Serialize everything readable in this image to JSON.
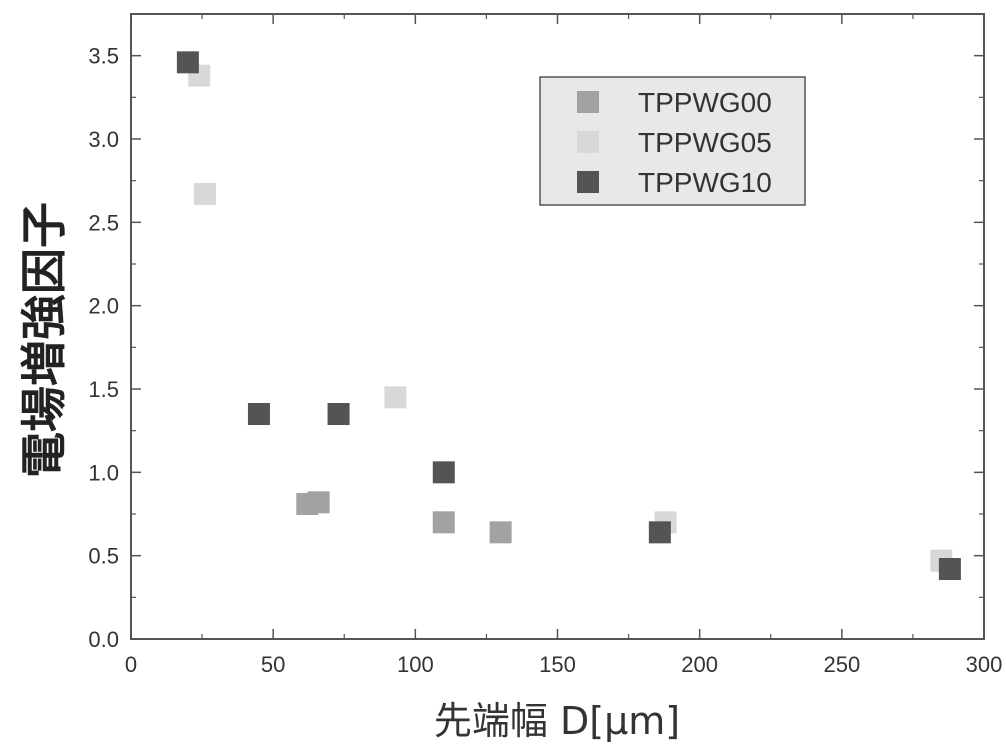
{
  "chart_data": {
    "type": "scatter",
    "xlabel": "先端幅 D[μm]",
    "ylabel": "電場増強因子",
    "xlim": [
      0,
      300
    ],
    "ylim": [
      0,
      3.75
    ],
    "x_ticks": [
      "0",
      "50",
      "100",
      "150",
      "200",
      "250",
      "300"
    ],
    "y_ticks": [
      "0.0",
      "0.5",
      "1.0",
      "1.5",
      "2.0",
      "2.5",
      "3.0",
      "3.5"
    ],
    "grid": false,
    "legend_position": "top-right",
    "series": [
      {
        "name": "TPPWG00",
        "color": "#a2a2a2",
        "points": [
          {
            "x": 62,
            "y": 0.81
          },
          {
            "x": 66,
            "y": 0.82
          },
          {
            "x": 110,
            "y": 0.7
          },
          {
            "x": 130,
            "y": 0.64
          }
        ]
      },
      {
        "name": "TPPWG05",
        "color": "#d8d8d8",
        "points": [
          {
            "x": 24,
            "y": 3.38
          },
          {
            "x": 26,
            "y": 2.67
          },
          {
            "x": 93,
            "y": 1.45
          },
          {
            "x": 188,
            "y": 0.7
          },
          {
            "x": 285,
            "y": 0.47
          }
        ]
      },
      {
        "name": "TPPWG10",
        "color": "#545454",
        "points": [
          {
            "x": 20,
            "y": 3.46
          },
          {
            "x": 45,
            "y": 1.35
          },
          {
            "x": 73,
            "y": 1.35
          },
          {
            "x": 110,
            "y": 1.0
          },
          {
            "x": 186,
            "y": 0.64
          },
          {
            "x": 288,
            "y": 0.42
          }
        ]
      }
    ]
  }
}
